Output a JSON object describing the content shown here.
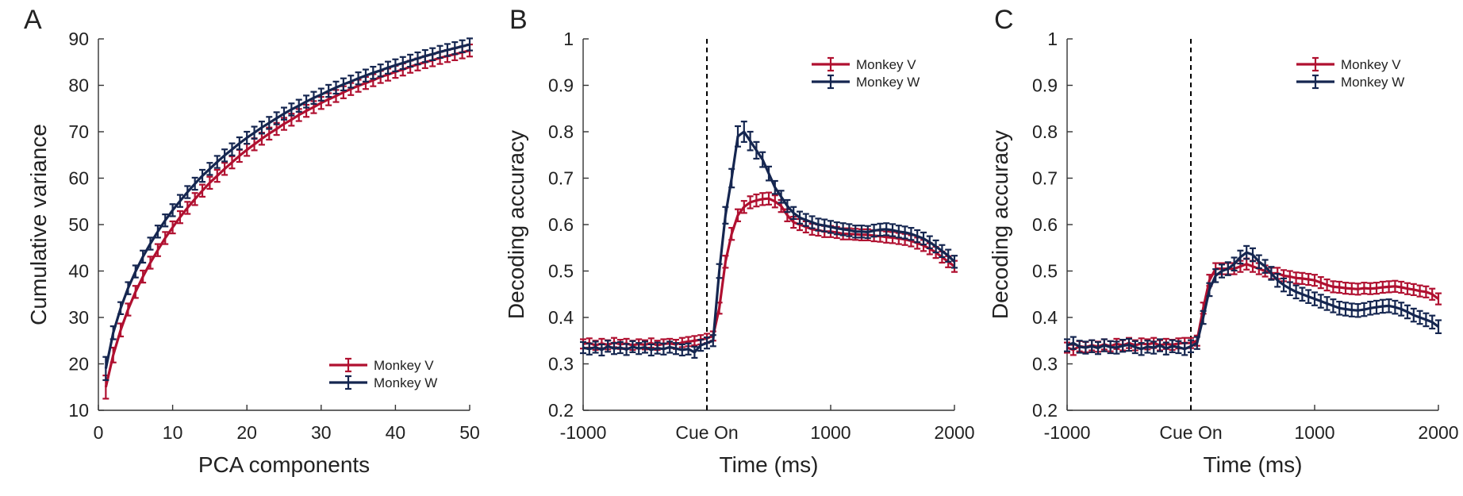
{
  "colors": {
    "monkey_v": "#b01030",
    "monkey_w": "#152650",
    "axis": "#333333",
    "text": "#222222"
  },
  "chart_data": [
    {
      "id": "A",
      "panel_label": "A",
      "type": "line",
      "xlabel": "PCA components",
      "ylabel": "Cumulative variance",
      "xlim": [
        0,
        50
      ],
      "ylim": [
        10,
        90
      ],
      "xticks": [
        0,
        10,
        20,
        30,
        40,
        50
      ],
      "xtick_labels": [
        "0",
        "10",
        "20",
        "30",
        "40",
        "50"
      ],
      "yticks": [
        10,
        20,
        30,
        40,
        50,
        60,
        70,
        80,
        90
      ],
      "ytick_labels": [
        "10",
        "20",
        "30",
        "40",
        "50",
        "60",
        "70",
        "80",
        "90"
      ],
      "grid": false,
      "legend_position": "bottom-right",
      "error_bars": true,
      "x": [
        1,
        2,
        3,
        4,
        5,
        6,
        7,
        8,
        9,
        10,
        11,
        12,
        13,
        14,
        15,
        16,
        17,
        18,
        19,
        20,
        21,
        22,
        23,
        24,
        25,
        26,
        27,
        28,
        29,
        30,
        31,
        32,
        33,
        34,
        35,
        36,
        37,
        38,
        39,
        40,
        41,
        42,
        43,
        44,
        45,
        46,
        47,
        48,
        49,
        50
      ],
      "series": [
        {
          "name": "Monkey V",
          "color_key": "monkey_v",
          "values": [
            15.0,
            21.9,
            27.3,
            31.7,
            35.5,
            38.8,
            41.8,
            44.5,
            47.1,
            49.4,
            51.6,
            53.6,
            55.5,
            57.3,
            59.0,
            60.5,
            62.0,
            63.4,
            64.8,
            66.1,
            67.3,
            68.5,
            69.6,
            70.6,
            71.7,
            72.6,
            73.6,
            74.5,
            75.3,
            76.2,
            77.0,
            77.7,
            78.5,
            79.2,
            79.9,
            80.5,
            81.1,
            81.8,
            82.3,
            82.9,
            83.4,
            84.0,
            84.5,
            85.0,
            85.4,
            85.9,
            86.3,
            86.7,
            87.1,
            87.5
          ],
          "error": [
            2.5,
            1.6,
            1.4,
            1.3,
            1.3,
            1.3,
            1.3,
            1.3,
            1.3,
            1.3,
            1.3,
            1.3,
            1.3,
            1.3,
            1.3,
            1.3,
            1.3,
            1.3,
            1.3,
            1.3,
            1.3,
            1.3,
            1.3,
            1.3,
            1.3,
            1.3,
            1.3,
            1.3,
            1.3,
            1.3,
            1.3,
            1.3,
            1.3,
            1.3,
            1.3,
            1.3,
            1.3,
            1.3,
            1.3,
            1.3,
            1.3,
            1.3,
            1.3,
            1.3,
            1.3,
            1.3,
            1.3,
            1.3,
            1.3,
            1.3
          ]
        },
        {
          "name": "Monkey W",
          "color_key": "monkey_w",
          "values": [
            19.0,
            26.7,
            32.0,
            36.3,
            39.9,
            43.1,
            45.9,
            48.5,
            50.9,
            53.1,
            55.1,
            57.0,
            58.8,
            60.5,
            62.0,
            63.5,
            64.9,
            66.2,
            67.5,
            68.7,
            69.8,
            70.9,
            71.9,
            72.9,
            73.9,
            74.8,
            75.6,
            76.5,
            77.3,
            78.0,
            78.8,
            79.5,
            80.2,
            80.8,
            81.5,
            82.1,
            82.7,
            83.2,
            83.8,
            84.3,
            84.8,
            85.3,
            85.8,
            86.3,
            86.7,
            87.2,
            87.6,
            88.0,
            88.4,
            88.8
          ],
          "error": [
            2.5,
            1.4,
            1.3,
            1.3,
            1.3,
            1.3,
            1.3,
            1.3,
            1.3,
            1.3,
            1.3,
            1.3,
            1.3,
            1.3,
            1.3,
            1.3,
            1.3,
            1.3,
            1.3,
            1.3,
            1.3,
            1.3,
            1.3,
            1.3,
            1.3,
            1.3,
            1.3,
            1.3,
            1.3,
            1.3,
            1.3,
            1.3,
            1.3,
            1.3,
            1.3,
            1.3,
            1.3,
            1.3,
            1.3,
            1.3,
            1.3,
            1.3,
            1.3,
            1.3,
            1.3,
            1.3,
            1.3,
            1.3,
            1.3,
            1.3
          ]
        }
      ]
    },
    {
      "id": "B",
      "panel_label": "B",
      "type": "line",
      "xlabel": "Time (ms)",
      "ylabel": "Decoding accuracy",
      "xlim": [
        -1000,
        2000
      ],
      "ylim": [
        0.2,
        1.0
      ],
      "xticks": [
        -1000,
        0,
        1000,
        2000
      ],
      "xtick_labels": [
        "-1000",
        "Cue On",
        "1000",
        "2000"
      ],
      "yticks": [
        0.2,
        0.3,
        0.4,
        0.5,
        0.6,
        0.7,
        0.8,
        0.9,
        1.0
      ],
      "ytick_labels": [
        "0.2",
        "0.3",
        "0.4",
        "0.5",
        "0.6",
        "0.7",
        "0.8",
        "0.9",
        "1"
      ],
      "grid": false,
      "legend_position": "top-right",
      "error_bars": true,
      "vline_at": 0,
      "x": [
        -1000,
        -950,
        -900,
        -850,
        -800,
        -750,
        -700,
        -650,
        -600,
        -550,
        -500,
        -450,
        -400,
        -350,
        -300,
        -250,
        -200,
        -150,
        -100,
        -50,
        0,
        50,
        100,
        150,
        200,
        250,
        300,
        350,
        400,
        450,
        500,
        550,
        600,
        650,
        700,
        750,
        800,
        850,
        900,
        950,
        1000,
        1050,
        1100,
        1150,
        1200,
        1250,
        1300,
        1350,
        1400,
        1450,
        1500,
        1550,
        1600,
        1650,
        1700,
        1750,
        1800,
        1850,
        1900,
        1950,
        2000
      ],
      "series": [
        {
          "name": "Monkey V",
          "color_key": "monkey_v",
          "values": [
            0.343,
            0.345,
            0.34,
            0.344,
            0.341,
            0.346,
            0.342,
            0.344,
            0.34,
            0.343,
            0.341,
            0.345,
            0.34,
            0.343,
            0.344,
            0.342,
            0.346,
            0.348,
            0.35,
            0.352,
            0.355,
            0.36,
            0.42,
            0.52,
            0.58,
            0.62,
            0.638,
            0.648,
            0.652,
            0.655,
            0.656,
            0.65,
            0.64,
            0.62,
            0.605,
            0.6,
            0.595,
            0.59,
            0.588,
            0.585,
            0.585,
            0.583,
            0.58,
            0.58,
            0.579,
            0.578,
            0.578,
            0.576,
            0.575,
            0.573,
            0.572,
            0.57,
            0.568,
            0.565,
            0.56,
            0.555,
            0.548,
            0.54,
            0.53,
            0.52,
            0.51
          ],
          "error": [
            0.01,
            0.01,
            0.01,
            0.01,
            0.01,
            0.01,
            0.01,
            0.01,
            0.01,
            0.01,
            0.01,
            0.01,
            0.01,
            0.01,
            0.01,
            0.01,
            0.01,
            0.01,
            0.01,
            0.01,
            0.01,
            0.01,
            0.012,
            0.013,
            0.013,
            0.013,
            0.013,
            0.013,
            0.013,
            0.013,
            0.013,
            0.013,
            0.013,
            0.013,
            0.012,
            0.012,
            0.012,
            0.012,
            0.012,
            0.012,
            0.012,
            0.012,
            0.012,
            0.012,
            0.012,
            0.012,
            0.012,
            0.012,
            0.012,
            0.012,
            0.012,
            0.012,
            0.012,
            0.012,
            0.012,
            0.012,
            0.012,
            0.012,
            0.012,
            0.012,
            0.012
          ]
        },
        {
          "name": "Monkey W",
          "color_key": "monkey_w",
          "values": [
            0.335,
            0.332,
            0.336,
            0.33,
            0.338,
            0.333,
            0.335,
            0.331,
            0.337,
            0.333,
            0.336,
            0.33,
            0.334,
            0.332,
            0.336,
            0.333,
            0.33,
            0.332,
            0.325,
            0.34,
            0.345,
            0.35,
            0.5,
            0.62,
            0.7,
            0.79,
            0.8,
            0.78,
            0.76,
            0.74,
            0.71,
            0.68,
            0.66,
            0.64,
            0.625,
            0.615,
            0.61,
            0.605,
            0.6,
            0.598,
            0.595,
            0.592,
            0.59,
            0.588,
            0.585,
            0.585,
            0.584,
            0.587,
            0.589,
            0.59,
            0.588,
            0.585,
            0.583,
            0.58,
            0.575,
            0.57,
            0.562,
            0.553,
            0.543,
            0.533,
            0.52
          ],
          "error": [
            0.012,
            0.012,
            0.012,
            0.012,
            0.012,
            0.012,
            0.012,
            0.012,
            0.012,
            0.012,
            0.012,
            0.012,
            0.012,
            0.012,
            0.012,
            0.012,
            0.012,
            0.012,
            0.012,
            0.012,
            0.012,
            0.012,
            0.015,
            0.018,
            0.02,
            0.022,
            0.022,
            0.02,
            0.018,
            0.016,
            0.015,
            0.014,
            0.013,
            0.013,
            0.013,
            0.013,
            0.013,
            0.013,
            0.013,
            0.013,
            0.013,
            0.013,
            0.013,
            0.013,
            0.013,
            0.013,
            0.013,
            0.013,
            0.013,
            0.013,
            0.013,
            0.013,
            0.013,
            0.013,
            0.013,
            0.013,
            0.013,
            0.013,
            0.013,
            0.013,
            0.013
          ]
        }
      ]
    },
    {
      "id": "C",
      "panel_label": "C",
      "type": "line",
      "xlabel": "Time (ms)",
      "ylabel": "Decoding accuracy",
      "xlim": [
        -1000,
        2000
      ],
      "ylim": [
        0.2,
        1.0
      ],
      "xticks": [
        -1000,
        0,
        1000,
        2000
      ],
      "xtick_labels": [
        "-1000",
        "Cue On",
        "1000",
        "2000"
      ],
      "yticks": [
        0.2,
        0.3,
        0.4,
        0.5,
        0.6,
        0.7,
        0.8,
        0.9,
        1.0
      ],
      "ytick_labels": [
        "0.2",
        "0.3",
        "0.4",
        "0.5",
        "0.6",
        "0.7",
        "0.8",
        "0.9",
        "1"
      ],
      "grid": false,
      "legend_position": "top-right",
      "error_bars": true,
      "vline_at": 0,
      "x": [
        -1000,
        -950,
        -900,
        -850,
        -800,
        -750,
        -700,
        -650,
        -600,
        -550,
        -500,
        -450,
        -400,
        -350,
        -300,
        -250,
        -200,
        -150,
        -100,
        -50,
        0,
        50,
        100,
        150,
        200,
        250,
        300,
        350,
        400,
        450,
        500,
        550,
        600,
        650,
        700,
        750,
        800,
        850,
        900,
        950,
        1000,
        1050,
        1100,
        1150,
        1200,
        1250,
        1300,
        1350,
        1400,
        1450,
        1500,
        1550,
        1600,
        1650,
        1700,
        1750,
        1800,
        1850,
        1900,
        1950,
        2000
      ],
      "series": [
        {
          "name": "Monkey V",
          "color_key": "monkey_v",
          "values": [
            0.335,
            0.33,
            0.338,
            0.336,
            0.34,
            0.337,
            0.342,
            0.338,
            0.343,
            0.34,
            0.345,
            0.34,
            0.344,
            0.342,
            0.345,
            0.34,
            0.343,
            0.341,
            0.344,
            0.345,
            0.345,
            0.35,
            0.42,
            0.48,
            0.505,
            0.505,
            0.505,
            0.505,
            0.51,
            0.515,
            0.51,
            0.505,
            0.5,
            0.495,
            0.495,
            0.49,
            0.488,
            0.485,
            0.484,
            0.482,
            0.48,
            0.475,
            0.47,
            0.466,
            0.465,
            0.463,
            0.462,
            0.461,
            0.463,
            0.462,
            0.463,
            0.465,
            0.466,
            0.467,
            0.465,
            0.462,
            0.46,
            0.457,
            0.455,
            0.45,
            0.44
          ],
          "error": [
            0.011,
            0.011,
            0.011,
            0.011,
            0.011,
            0.011,
            0.011,
            0.011,
            0.011,
            0.011,
            0.011,
            0.011,
            0.011,
            0.011,
            0.011,
            0.011,
            0.011,
            0.011,
            0.011,
            0.011,
            0.011,
            0.011,
            0.012,
            0.012,
            0.012,
            0.012,
            0.012,
            0.012,
            0.012,
            0.012,
            0.012,
            0.012,
            0.012,
            0.012,
            0.012,
            0.012,
            0.012,
            0.012,
            0.012,
            0.012,
            0.012,
            0.012,
            0.012,
            0.012,
            0.012,
            0.012,
            0.012,
            0.012,
            0.012,
            0.012,
            0.012,
            0.012,
            0.012,
            0.012,
            0.012,
            0.012,
            0.012,
            0.012,
            0.012,
            0.012,
            0.012
          ]
        },
        {
          "name": "Monkey W",
          "color_key": "monkey_w",
          "values": [
            0.34,
            0.345,
            0.337,
            0.335,
            0.338,
            0.334,
            0.34,
            0.336,
            0.335,
            0.339,
            0.341,
            0.336,
            0.332,
            0.337,
            0.335,
            0.34,
            0.333,
            0.338,
            0.336,
            0.332,
            0.338,
            0.345,
            0.4,
            0.46,
            0.49,
            0.5,
            0.505,
            0.515,
            0.53,
            0.54,
            0.535,
            0.52,
            0.51,
            0.495,
            0.48,
            0.47,
            0.462,
            0.455,
            0.45,
            0.445,
            0.44,
            0.435,
            0.43,
            0.425,
            0.42,
            0.418,
            0.416,
            0.415,
            0.417,
            0.42,
            0.422,
            0.424,
            0.425,
            0.422,
            0.418,
            0.412,
            0.405,
            0.4,
            0.395,
            0.39,
            0.38
          ],
          "error": [
            0.013,
            0.013,
            0.013,
            0.013,
            0.013,
            0.013,
            0.013,
            0.013,
            0.013,
            0.013,
            0.013,
            0.013,
            0.013,
            0.013,
            0.013,
            0.013,
            0.013,
            0.013,
            0.013,
            0.013,
            0.013,
            0.013,
            0.014,
            0.014,
            0.014,
            0.014,
            0.014,
            0.014,
            0.014,
            0.014,
            0.014,
            0.014,
            0.014,
            0.014,
            0.014,
            0.014,
            0.014,
            0.014,
            0.014,
            0.014,
            0.014,
            0.014,
            0.014,
            0.014,
            0.014,
            0.014,
            0.014,
            0.014,
            0.014,
            0.014,
            0.014,
            0.014,
            0.014,
            0.014,
            0.014,
            0.014,
            0.014,
            0.014,
            0.014,
            0.014,
            0.014
          ]
        }
      ]
    }
  ]
}
